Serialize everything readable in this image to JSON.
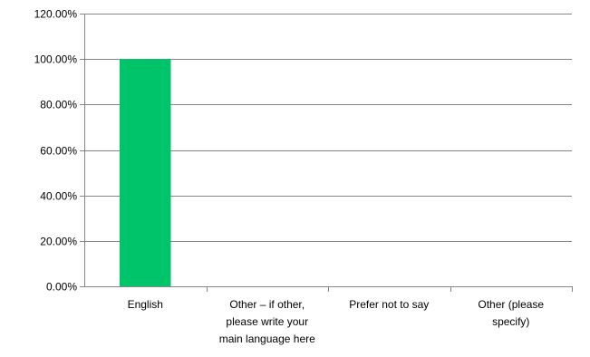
{
  "chart_data": {
    "type": "bar",
    "categories": [
      [
        "English"
      ],
      [
        "Other – if other,",
        "please write your",
        "main language here"
      ],
      [
        "Prefer not to say"
      ],
      [
        "Other (please",
        "specify)"
      ]
    ],
    "values": [
      100,
      0,
      0,
      0
    ],
    "y_ticks": [
      "0.00%",
      "20.00%",
      "40.00%",
      "60.00%",
      "80.00%",
      "100.00%",
      "120.00%"
    ],
    "ylim": [
      0,
      120
    ],
    "y_tick_step": 20,
    "grid": true,
    "legend": "none",
    "bar_color": "#00c46a",
    "grid_color": "#868686"
  }
}
